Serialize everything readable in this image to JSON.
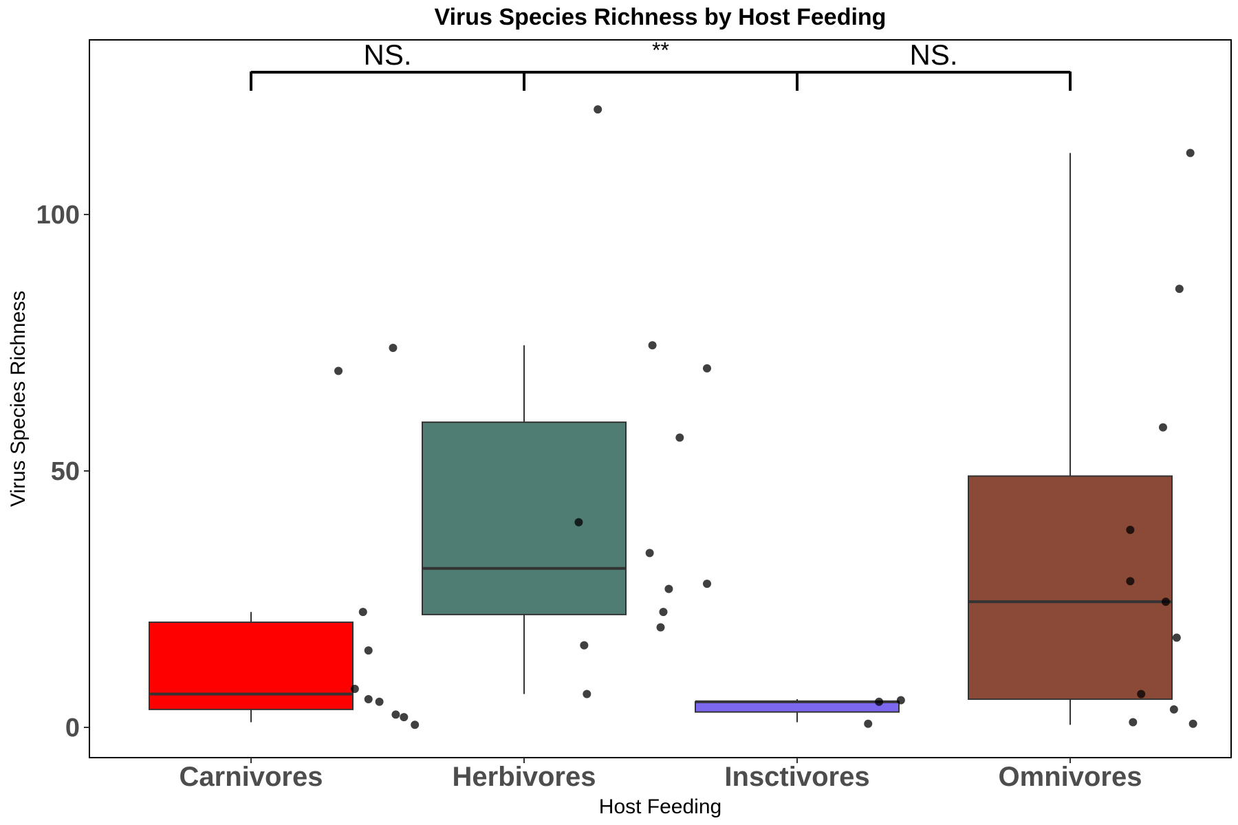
{
  "chart_data": {
    "type": "box",
    "title": "Virus Species Richness by Host Feeding",
    "xlabel": "Host Feeding",
    "ylabel": "Virus Species Richness",
    "ylim": [
      -5,
      135
    ],
    "yticks": [
      0,
      50,
      100
    ],
    "ytick_labels": [
      "0",
      "50",
      "100"
    ],
    "grid": false,
    "legend": "none",
    "categories": [
      "Carnivores",
      "Herbivores",
      "Insctivores",
      "Omnivores"
    ],
    "groups": [
      {
        "name": "Carnivores",
        "color": "#ff0000",
        "box": {
          "whisker_low": 1,
          "q1": 3.5,
          "median": 6.5,
          "q3": 20.5,
          "whisker_high": 22.5
        },
        "points": [
          [
            0.32,
            69.5
          ],
          [
            0.52,
            74
          ],
          [
            0.41,
            22.5
          ],
          [
            0.43,
            15
          ],
          [
            0.38,
            7.5
          ],
          [
            0.43,
            5.5
          ],
          [
            0.47,
            5
          ],
          [
            0.53,
            2.5
          ],
          [
            0.56,
            2
          ],
          [
            0.6,
            0.5
          ]
        ]
      },
      {
        "name": "Herbivores",
        "color": "#4f7d73",
        "box": {
          "whisker_low": 6.5,
          "q1": 22,
          "median": 31,
          "q3": 59.5,
          "whisker_high": 74.5
        },
        "points": [
          [
            1.27,
            120.5
          ],
          [
            1.47,
            74.5
          ],
          [
            1.67,
            70
          ],
          [
            1.57,
            56.5
          ],
          [
            1.2,
            40
          ],
          [
            1.46,
            34
          ],
          [
            1.53,
            27
          ],
          [
            1.67,
            28
          ],
          [
            1.51,
            22.5
          ],
          [
            1.5,
            19.5
          ],
          [
            1.22,
            16
          ],
          [
            1.23,
            6.5
          ]
        ]
      },
      {
        "name": "Insctivores",
        "color": "#7b68ee",
        "box": {
          "whisker_low": 1,
          "q1": 3,
          "median": 5,
          "q3": 5,
          "whisker_high": 5.5
        },
        "points": [
          [
            2.3,
            5
          ],
          [
            2.38,
            5.3
          ],
          [
            2.26,
            0.7
          ]
        ]
      },
      {
        "name": "Omnivores",
        "color": "#8b4a37",
        "box": {
          "whisker_low": 0.5,
          "q1": 5.5,
          "median": 24.5,
          "q3": 49,
          "whisker_high": 112
        },
        "points": [
          [
            3.44,
            112
          ],
          [
            3.4,
            85.5
          ],
          [
            3.34,
            58.5
          ],
          [
            3.22,
            38.5
          ],
          [
            3.22,
            28.5
          ],
          [
            3.35,
            24.5
          ],
          [
            3.39,
            17.5
          ],
          [
            3.26,
            6.5
          ],
          [
            3.38,
            3.5
          ],
          [
            3.23,
            1
          ],
          [
            3.45,
            0.7
          ]
        ]
      }
    ],
    "annotations": [
      {
        "label": "NS.",
        "from": "Carnivores",
        "to": "Herbivores"
      },
      {
        "label": "**",
        "from": "Herbivores",
        "to": "Insctivores"
      },
      {
        "label": "NS.",
        "from": "Insctivores",
        "to": "Omnivores"
      }
    ]
  }
}
